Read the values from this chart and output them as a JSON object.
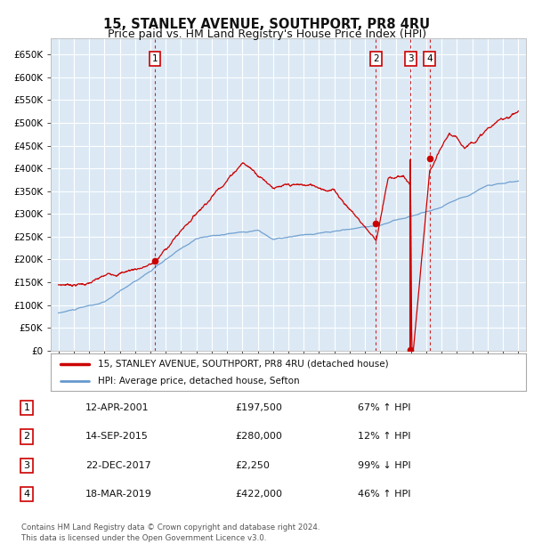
{
  "title": "15, STANLEY AVENUE, SOUTHPORT, PR8 4RU",
  "subtitle": "Price paid vs. HM Land Registry's House Price Index (HPI)",
  "title_fontsize": 10.5,
  "subtitle_fontsize": 9,
  "bg_color": "#dce9f5",
  "fig_bg_color": "#ffffff",
  "red_color": "#cc0000",
  "blue_color": "#6699cc",
  "ylim": [
    0,
    675000
  ],
  "yticks": [
    0,
    50000,
    100000,
    150000,
    200000,
    250000,
    300000,
    350000,
    400000,
    450000,
    500000,
    550000,
    600000,
    650000
  ],
  "xlim": [
    1994.5,
    2025.5
  ],
  "xticks": [
    1995,
    1996,
    1997,
    1998,
    1999,
    2000,
    2001,
    2002,
    2003,
    2004,
    2005,
    2006,
    2007,
    2008,
    2009,
    2010,
    2011,
    2012,
    2013,
    2014,
    2015,
    2016,
    2017,
    2018,
    2019,
    2020,
    2021,
    2022,
    2023,
    2024,
    2025
  ],
  "transactions": [
    {
      "num": 1,
      "date_num": 2001.28,
      "price": 197500
    },
    {
      "num": 2,
      "date_num": 2015.71,
      "price": 280000
    },
    {
      "num": 3,
      "date_num": 2017.98,
      "price": 2250
    },
    {
      "num": 4,
      "date_num": 2019.21,
      "price": 422000
    }
  ],
  "table_rows": [
    {
      "num": "1",
      "date": "12-APR-2001",
      "price": "£197,500",
      "hpi": "67% ↑ HPI"
    },
    {
      "num": "2",
      "date": "14-SEP-2015",
      "price": "£280,000",
      "hpi": "12% ↑ HPI"
    },
    {
      "num": "3",
      "date": "22-DEC-2017",
      "price": "£2,250",
      "hpi": "99% ↓ HPI"
    },
    {
      "num": "4",
      "date": "18-MAR-2019",
      "price": "£422,000",
      "hpi": "46% ↑ HPI"
    }
  ],
  "footer": "Contains HM Land Registry data © Crown copyright and database right 2024.\nThis data is licensed under the Open Government Licence v3.0.",
  "legend_entries": [
    "15, STANLEY AVENUE, SOUTHPORT, PR8 4RU (detached house)",
    "HPI: Average price, detached house, Sefton"
  ]
}
